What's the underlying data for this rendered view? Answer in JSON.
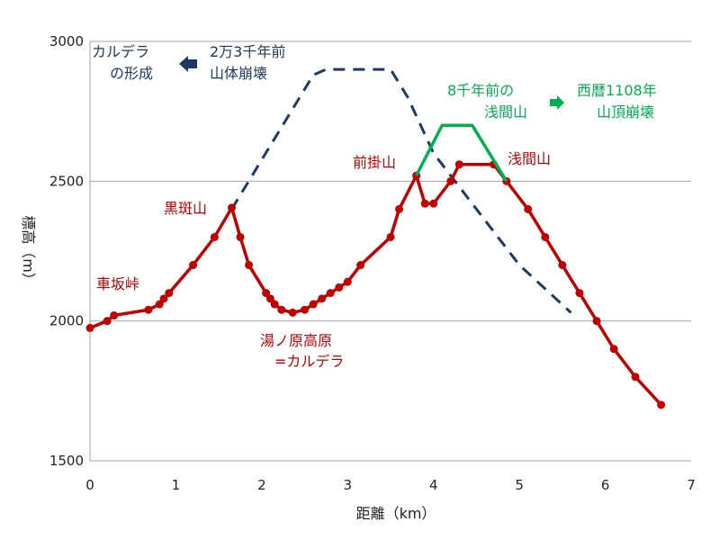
{
  "chart_data": {
    "type": "line",
    "xlabel": "距離（km）",
    "ylabel": "標高（m）",
    "xlim": [
      0,
      7
    ],
    "ylim": [
      1500,
      3000
    ],
    "xticks": [
      "0",
      "1",
      "2",
      "3",
      "4",
      "5",
      "6",
      "7"
    ],
    "yticks": [
      "1500",
      "2000",
      "2500",
      "3000"
    ],
    "grid": "horizontal",
    "series": [
      {
        "role": "current-profile",
        "color": "#C00000",
        "style": "solid-with-markers",
        "x": [
          0.0,
          0.2,
          0.28,
          0.68,
          0.81,
          0.86,
          0.92,
          1.2,
          1.45,
          1.65,
          1.75,
          1.85,
          2.05,
          2.1,
          2.15,
          2.23,
          2.36,
          2.5,
          2.6,
          2.7,
          2.8,
          2.9,
          3.0,
          3.15,
          3.5,
          3.6,
          3.8,
          3.9,
          4.0,
          4.2,
          4.3,
          4.7,
          4.85,
          5.1,
          5.3,
          5.5,
          5.7,
          5.9,
          6.1,
          6.35,
          6.65
        ],
        "y": [
          1975,
          2000,
          2020,
          2040,
          2060,
          2080,
          2100,
          2200,
          2300,
          2405,
          2300,
          2200,
          2100,
          2080,
          2060,
          2040,
          2030,
          2040,
          2060,
          2080,
          2100,
          2120,
          2140,
          2200,
          2300,
          2400,
          2520,
          2420,
          2420,
          2500,
          2560,
          2560,
          2500,
          2400,
          2300,
          2200,
          2100,
          2000,
          1900,
          1800,
          1700
        ]
      },
      {
        "role": "ancient-profile",
        "color": "#1F3864",
        "style": "dashed",
        "x": [
          1.65,
          2.6,
          2.75,
          3.5,
          3.7,
          4.0,
          4.5,
          5.0,
          5.6
        ],
        "y": [
          2400,
          2880,
          2900,
          2900,
          2800,
          2600,
          2400,
          2200,
          2030
        ]
      },
      {
        "role": "8000-years-ago-asama",
        "color": "#00B050",
        "style": "solid",
        "x": [
          3.8,
          4.1,
          4.45,
          4.85
        ],
        "y": [
          2520,
          2700,
          2700,
          2500
        ]
      }
    ],
    "annotations": {
      "kurumazaka": "車坂峠",
      "kurofu": "黒斑山",
      "yunomaru_line1": "湯ノ原高原",
      "yunomaru_line2": "=カルデラ",
      "maekake": "前掛山",
      "asama": "浅間山",
      "caldera_line1": "カルデラ",
      "caldera_line2": "の形成",
      "collapse_23k_line1": "2万3千年前",
      "collapse_23k_line2": "山体崩壊",
      "asama_8k_line1": "8千年前の",
      "asama_8k_line2": "浅間山",
      "collapse_1108_line1": "西暦1108年",
      "collapse_1108_line2": "山頂崩壊"
    }
  },
  "colors": {
    "red": "#C00000",
    "navy": "#1F3864",
    "green": "#00B050",
    "grid": "#A6A6A6"
  }
}
